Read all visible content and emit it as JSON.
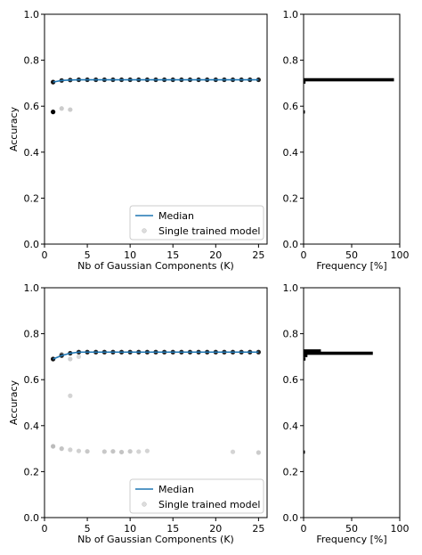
{
  "chart_data": [
    {
      "type": "scatter",
      "panel": "top-left",
      "xlabel": "Nb of Gaussian Components (K)",
      "ylabel": "Accuracy",
      "xlim": [
        0,
        26
      ],
      "ylim": [
        0.0,
        1.0
      ],
      "xticks": [
        "0",
        "5",
        "10",
        "15",
        "20",
        "25"
      ],
      "yticks": [
        "0.0",
        "0.2",
        "0.4",
        "0.6",
        "0.8",
        "1.0"
      ],
      "legend": {
        "placement": "lower-right",
        "entries": [
          "Median",
          "Single trained model"
        ]
      },
      "series": [
        {
          "name": "Median",
          "kind": "line",
          "color": "#1f77b4",
          "x": [
            1,
            2,
            3,
            4,
            5,
            6,
            7,
            8,
            9,
            10,
            11,
            12,
            13,
            14,
            15,
            16,
            17,
            18,
            19,
            20,
            21,
            22,
            23,
            24,
            25
          ],
          "y": [
            0.705,
            0.712,
            0.714,
            0.715,
            0.715,
            0.715,
            0.715,
            0.715,
            0.715,
            0.715,
            0.715,
            0.715,
            0.715,
            0.715,
            0.715,
            0.715,
            0.715,
            0.715,
            0.715,
            0.715,
            0.715,
            0.715,
            0.715,
            0.715,
            0.715
          ]
        },
        {
          "name": "Single trained model",
          "kind": "scatter",
          "points": [
            {
              "x": 1,
              "y": 0.575,
              "shade": "#000000"
            },
            {
              "x": 2,
              "y": 0.59,
              "shade": "#cccccc"
            },
            {
              "x": 3,
              "y": 0.585,
              "shade": "#cccccc"
            },
            {
              "x": 1,
              "y": 0.705,
              "shade": "#111111"
            },
            {
              "x": 2,
              "y": 0.712,
              "shade": "#222222"
            },
            {
              "x": 3,
              "y": 0.714,
              "shade": "#222222"
            },
            {
              "x": 4,
              "y": 0.715,
              "shade": "#222222"
            },
            {
              "x": 5,
              "y": 0.715,
              "shade": "#222222"
            },
            {
              "x": 6,
              "y": 0.715,
              "shade": "#222222"
            },
            {
              "x": 7,
              "y": 0.715,
              "shade": "#222222"
            },
            {
              "x": 8,
              "y": 0.715,
              "shade": "#222222"
            },
            {
              "x": 9,
              "y": 0.715,
              "shade": "#222222"
            },
            {
              "x": 10,
              "y": 0.715,
              "shade": "#222222"
            },
            {
              "x": 11,
              "y": 0.715,
              "shade": "#222222"
            },
            {
              "x": 12,
              "y": 0.715,
              "shade": "#222222"
            },
            {
              "x": 13,
              "y": 0.715,
              "shade": "#222222"
            },
            {
              "x": 14,
              "y": 0.715,
              "shade": "#222222"
            },
            {
              "x": 15,
              "y": 0.715,
              "shade": "#222222"
            },
            {
              "x": 16,
              "y": 0.715,
              "shade": "#222222"
            },
            {
              "x": 17,
              "y": 0.715,
              "shade": "#222222"
            },
            {
              "x": 18,
              "y": 0.715,
              "shade": "#222222"
            },
            {
              "x": 19,
              "y": 0.715,
              "shade": "#222222"
            },
            {
              "x": 20,
              "y": 0.715,
              "shade": "#222222"
            },
            {
              "x": 21,
              "y": 0.715,
              "shade": "#222222"
            },
            {
              "x": 22,
              "y": 0.715,
              "shade": "#222222"
            },
            {
              "x": 23,
              "y": 0.715,
              "shade": "#222222"
            },
            {
              "x": 24,
              "y": 0.715,
              "shade": "#222222"
            },
            {
              "x": 25,
              "y": 0.715,
              "shade": "#222222"
            }
          ]
        }
      ]
    },
    {
      "type": "bar",
      "orientation": "horizontal",
      "panel": "top-right",
      "xlabel": "Frequency [%]",
      "xlim": [
        0,
        100
      ],
      "ylim": [
        0.0,
        1.0
      ],
      "xticks": [
        "0",
        "50",
        "100"
      ],
      "yticks": [
        "0.0",
        "0.2",
        "0.4",
        "0.6",
        "0.8",
        "1.0"
      ],
      "bars": [
        {
          "y": 0.715,
          "value": 94
        },
        {
          "y": 0.705,
          "value": 2
        },
        {
          "y": 0.575,
          "value": 1
        }
      ]
    },
    {
      "type": "scatter",
      "panel": "bottom-left",
      "xlabel": "Nb of Gaussian Components (K)",
      "ylabel": "Accuracy",
      "xlim": [
        0,
        26
      ],
      "ylim": [
        0.0,
        1.0
      ],
      "xticks": [
        "0",
        "5",
        "10",
        "15",
        "20",
        "25"
      ],
      "yticks": [
        "0.0",
        "0.2",
        "0.4",
        "0.6",
        "0.8",
        "1.0"
      ],
      "legend": {
        "placement": "lower-right",
        "entries": [
          "Median",
          "Single trained model"
        ]
      },
      "series": [
        {
          "name": "Median",
          "kind": "line",
          "color": "#1f77b4",
          "x": [
            1,
            2,
            3,
            4,
            5,
            6,
            7,
            8,
            9,
            10,
            11,
            12,
            13,
            14,
            15,
            16,
            17,
            18,
            19,
            20,
            21,
            22,
            23,
            24,
            25
          ],
          "y": [
            0.69,
            0.705,
            0.715,
            0.72,
            0.72,
            0.72,
            0.72,
            0.72,
            0.72,
            0.72,
            0.72,
            0.72,
            0.72,
            0.72,
            0.72,
            0.72,
            0.72,
            0.72,
            0.72,
            0.72,
            0.72,
            0.72,
            0.72,
            0.72,
            0.72
          ]
        },
        {
          "name": "Single trained model",
          "kind": "scatter",
          "points": [
            {
              "x": 1,
              "y": 0.31,
              "shade": "#bbbbbb"
            },
            {
              "x": 2,
              "y": 0.3,
              "shade": "#c4c4c4"
            },
            {
              "x": 3,
              "y": 0.295,
              "shade": "#d0d0d0"
            },
            {
              "x": 4,
              "y": 0.29,
              "shade": "#d0d0d0"
            },
            {
              "x": 5,
              "y": 0.288,
              "shade": "#c8c8c8"
            },
            {
              "x": 7,
              "y": 0.287,
              "shade": "#c8c8c8"
            },
            {
              "x": 8,
              "y": 0.288,
              "shade": "#c4c4c4"
            },
            {
              "x": 9,
              "y": 0.285,
              "shade": "#c4c4c4"
            },
            {
              "x": 10,
              "y": 0.288,
              "shade": "#c8c8c8"
            },
            {
              "x": 11,
              "y": 0.287,
              "shade": "#d4d4d4"
            },
            {
              "x": 12,
              "y": 0.29,
              "shade": "#d4d4d4"
            },
            {
              "x": 22,
              "y": 0.286,
              "shade": "#d4d4d4"
            },
            {
              "x": 25,
              "y": 0.283,
              "shade": "#cccccc"
            },
            {
              "x": 3,
              "y": 0.53,
              "shade": "#d4d4d4"
            },
            {
              "x": 3,
              "y": 0.69,
              "shade": "#d0d0d0"
            },
            {
              "x": 4,
              "y": 0.7,
              "shade": "#d8d8d8"
            },
            {
              "x": 2,
              "y": 0.71,
              "shade": "#999999"
            },
            {
              "x": 1,
              "y": 0.69,
              "shade": "#111111"
            },
            {
              "x": 2,
              "y": 0.705,
              "shade": "#222222"
            },
            {
              "x": 3,
              "y": 0.715,
              "shade": "#222222"
            },
            {
              "x": 4,
              "y": 0.72,
              "shade": "#222222"
            },
            {
              "x": 5,
              "y": 0.72,
              "shade": "#222222"
            },
            {
              "x": 6,
              "y": 0.72,
              "shade": "#222222"
            },
            {
              "x": 7,
              "y": 0.72,
              "shade": "#222222"
            },
            {
              "x": 8,
              "y": 0.72,
              "shade": "#222222"
            },
            {
              "x": 9,
              "y": 0.72,
              "shade": "#222222"
            },
            {
              "x": 10,
              "y": 0.72,
              "shade": "#222222"
            },
            {
              "x": 11,
              "y": 0.72,
              "shade": "#222222"
            },
            {
              "x": 12,
              "y": 0.72,
              "shade": "#222222"
            },
            {
              "x": 13,
              "y": 0.72,
              "shade": "#222222"
            },
            {
              "x": 14,
              "y": 0.72,
              "shade": "#222222"
            },
            {
              "x": 15,
              "y": 0.72,
              "shade": "#222222"
            },
            {
              "x": 16,
              "y": 0.72,
              "shade": "#222222"
            },
            {
              "x": 17,
              "y": 0.72,
              "shade": "#222222"
            },
            {
              "x": 18,
              "y": 0.72,
              "shade": "#222222"
            },
            {
              "x": 19,
              "y": 0.72,
              "shade": "#222222"
            },
            {
              "x": 20,
              "y": 0.72,
              "shade": "#222222"
            },
            {
              "x": 21,
              "y": 0.72,
              "shade": "#222222"
            },
            {
              "x": 22,
              "y": 0.72,
              "shade": "#222222"
            },
            {
              "x": 23,
              "y": 0.72,
              "shade": "#222222"
            },
            {
              "x": 24,
              "y": 0.72,
              "shade": "#222222"
            },
            {
              "x": 25,
              "y": 0.72,
              "shade": "#222222"
            }
          ]
        }
      ]
    },
    {
      "type": "bar",
      "orientation": "horizontal",
      "panel": "bottom-right",
      "xlabel": "Frequency [%]",
      "xlim": [
        0,
        100
      ],
      "ylim": [
        0.0,
        1.0
      ],
      "xticks": [
        "0",
        "50",
        "100"
      ],
      "yticks": [
        "0.0",
        "0.2",
        "0.4",
        "0.6",
        "0.8",
        "1.0"
      ],
      "bars": [
        {
          "y": 0.725,
          "value": 18
        },
        {
          "y": 0.715,
          "value": 72
        },
        {
          "y": 0.705,
          "value": 4
        },
        {
          "y": 0.69,
          "value": 2
        },
        {
          "y": 0.285,
          "value": 0.5
        }
      ]
    }
  ],
  "colors": {
    "median_line": "#1f77b4",
    "axis": "#000000",
    "bar": "#000000"
  }
}
